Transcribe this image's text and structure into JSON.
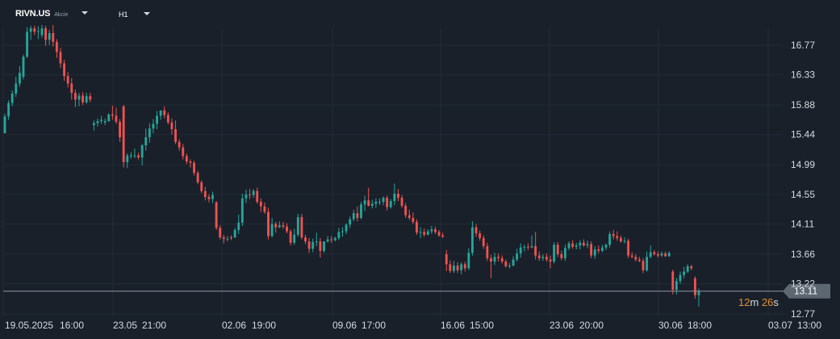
{
  "header": {
    "symbol": "RIVN.US",
    "instrument_type": "Akcie",
    "timeframe": "H1"
  },
  "countdown": {
    "minutes": "12",
    "minutes_unit": "m",
    "seconds": "26",
    "seconds_unit": "s"
  },
  "colors": {
    "background": "#19202a",
    "grid": "#222b36",
    "up": "#26a69a",
    "down": "#ef5350",
    "axis_text": "#d5dae0",
    "price_tag": "#5d6772",
    "timer": "#e8912d"
  },
  "chart_data": {
    "type": "candlestick",
    "title": "",
    "xlabel": "",
    "ylabel": "",
    "ylim": [
      12.67,
      17.08
    ],
    "y_ticks": [
      "16.77",
      "16.33",
      "15.88",
      "15.44",
      "14.99",
      "14.55",
      "14.11",
      "13.66",
      "13.22",
      "12.77"
    ],
    "x_tick_labels": [
      "19.05.2025",
      "16:00",
      "23.05",
      "21:00",
      "02.06",
      "19:00",
      "09.06",
      "17:00",
      "16.06",
      "15:00",
      "23.06",
      "20:00",
      "30.06",
      "18:00",
      "03.07",
      "13:00"
    ],
    "current_price": "13.11",
    "grid": true,
    "candles": [
      {
        "o": 15.46,
        "h": 15.75,
        "l": 15.46,
        "c": 15.71
      },
      {
        "o": 15.71,
        "h": 15.95,
        "l": 15.66,
        "c": 15.91
      },
      {
        "o": 15.91,
        "h": 16.1,
        "l": 15.86,
        "c": 16.05
      },
      {
        "o": 16.05,
        "h": 16.3,
        "l": 16.0,
        "c": 16.2
      },
      {
        "o": 16.2,
        "h": 16.46,
        "l": 16.15,
        "c": 16.36
      },
      {
        "o": 16.3,
        "h": 16.63,
        "l": 16.26,
        "c": 16.6
      },
      {
        "o": 16.6,
        "h": 17.04,
        "l": 16.58,
        "c": 16.97
      },
      {
        "o": 16.97,
        "h": 17.06,
        "l": 16.85,
        "c": 17.02
      },
      {
        "o": 17.02,
        "h": 17.06,
        "l": 16.92,
        "c": 16.97
      },
      {
        "o": 16.97,
        "h": 17.05,
        "l": 16.86,
        "c": 16.98
      },
      {
        "o": 16.92,
        "h": 17.07,
        "l": 16.88,
        "c": 17.02
      },
      {
        "o": 17.02,
        "h": 17.06,
        "l": 16.76,
        "c": 16.85
      },
      {
        "o": 16.85,
        "h": 17.0,
        "l": 16.77,
        "c": 16.95
      },
      {
        "o": 16.95,
        "h": 17.07,
        "l": 16.75,
        "c": 16.82
      },
      {
        "o": 16.82,
        "h": 16.86,
        "l": 16.58,
        "c": 16.67
      },
      {
        "o": 16.67,
        "h": 16.73,
        "l": 16.43,
        "c": 16.5
      },
      {
        "o": 16.5,
        "h": 16.55,
        "l": 16.24,
        "c": 16.31
      },
      {
        "o": 16.31,
        "h": 16.37,
        "l": 16.14,
        "c": 16.2
      },
      {
        "o": 16.2,
        "h": 16.28,
        "l": 15.96,
        "c": 16.06
      },
      {
        "o": 16.06,
        "h": 16.11,
        "l": 15.85,
        "c": 15.96
      },
      {
        "o": 15.96,
        "h": 16.06,
        "l": 15.86,
        "c": 16.02
      },
      {
        "o": 16.02,
        "h": 16.07,
        "l": 15.88,
        "c": 15.92
      },
      {
        "o": 15.92,
        "h": 16.06,
        "l": 15.9,
        "c": 16.01
      },
      {
        "o": 16.01,
        "h": 16.06,
        "l": 15.92,
        "c": 15.96
      },
      {
        "o": 15.58,
        "h": 15.65,
        "l": 15.5,
        "c": 15.61
      },
      {
        "o": 15.61,
        "h": 15.68,
        "l": 15.56,
        "c": 15.64
      },
      {
        "o": 15.64,
        "h": 15.72,
        "l": 15.6,
        "c": 15.66
      },
      {
        "o": 15.62,
        "h": 15.68,
        "l": 15.58,
        "c": 15.64
      },
      {
        "o": 15.64,
        "h": 15.76,
        "l": 15.63,
        "c": 15.74
      },
      {
        "o": 15.74,
        "h": 15.87,
        "l": 15.66,
        "c": 15.72
      },
      {
        "o": 15.72,
        "h": 15.84,
        "l": 15.6,
        "c": 15.63
      },
      {
        "o": 15.63,
        "h": 15.67,
        "l": 15.33,
        "c": 15.4
      },
      {
        "o": 15.86,
        "h": 15.88,
        "l": 14.95,
        "c": 15.03
      },
      {
        "o": 15.03,
        "h": 15.16,
        "l": 14.94,
        "c": 15.13
      },
      {
        "o": 15.13,
        "h": 15.18,
        "l": 15.08,
        "c": 15.13
      },
      {
        "o": 15.13,
        "h": 15.23,
        "l": 15.09,
        "c": 15.13
      },
      {
        "o": 15.13,
        "h": 15.17,
        "l": 15.07,
        "c": 15.1
      },
      {
        "o": 15.1,
        "h": 15.3,
        "l": 14.98,
        "c": 15.28
      },
      {
        "o": 15.28,
        "h": 15.53,
        "l": 15.2,
        "c": 15.4
      },
      {
        "o": 15.4,
        "h": 15.61,
        "l": 15.32,
        "c": 15.53
      },
      {
        "o": 15.53,
        "h": 15.67,
        "l": 15.46,
        "c": 15.6
      },
      {
        "o": 15.6,
        "h": 15.79,
        "l": 15.52,
        "c": 15.72
      },
      {
        "o": 15.72,
        "h": 15.8,
        "l": 15.66,
        "c": 15.8
      },
      {
        "o": 15.8,
        "h": 15.86,
        "l": 15.68,
        "c": 15.73
      },
      {
        "o": 15.73,
        "h": 15.77,
        "l": 15.59,
        "c": 15.62
      },
      {
        "o": 15.62,
        "h": 15.68,
        "l": 15.44,
        "c": 15.52
      },
      {
        "o": 15.52,
        "h": 15.65,
        "l": 15.3,
        "c": 15.33
      },
      {
        "o": 15.33,
        "h": 15.37,
        "l": 15.2,
        "c": 15.25
      },
      {
        "o": 15.25,
        "h": 15.3,
        "l": 15.07,
        "c": 15.12
      },
      {
        "o": 15.12,
        "h": 15.16,
        "l": 15.0,
        "c": 15.04
      },
      {
        "o": 15.04,
        "h": 15.07,
        "l": 14.95,
        "c": 15.02
      },
      {
        "o": 15.02,
        "h": 15.05,
        "l": 14.83,
        "c": 14.87
      },
      {
        "o": 14.87,
        "h": 14.9,
        "l": 14.7,
        "c": 14.73
      },
      {
        "o": 14.73,
        "h": 14.76,
        "l": 14.57,
        "c": 14.6
      },
      {
        "o": 14.6,
        "h": 14.66,
        "l": 14.46,
        "c": 14.51
      },
      {
        "o": 14.51,
        "h": 14.55,
        "l": 14.43,
        "c": 14.48
      },
      {
        "o": 14.48,
        "h": 14.59,
        "l": 14.42,
        "c": 14.54
      },
      {
        "o": 14.43,
        "h": 14.45,
        "l": 14.02,
        "c": 14.05
      },
      {
        "o": 14.05,
        "h": 14.09,
        "l": 13.88,
        "c": 13.91
      },
      {
        "o": 13.91,
        "h": 13.95,
        "l": 13.82,
        "c": 13.89
      },
      {
        "o": 13.89,
        "h": 13.93,
        "l": 13.85,
        "c": 13.89
      },
      {
        "o": 13.91,
        "h": 13.94,
        "l": 13.87,
        "c": 13.9
      },
      {
        "o": 13.91,
        "h": 14.05,
        "l": 13.9,
        "c": 14.02
      },
      {
        "o": 14.02,
        "h": 14.25,
        "l": 13.96,
        "c": 14.13
      },
      {
        "o": 14.13,
        "h": 14.56,
        "l": 14.08,
        "c": 14.49
      },
      {
        "o": 14.49,
        "h": 14.62,
        "l": 14.42,
        "c": 14.55
      },
      {
        "o": 14.55,
        "h": 14.63,
        "l": 14.48,
        "c": 14.54
      },
      {
        "o": 14.54,
        "h": 14.63,
        "l": 14.5,
        "c": 14.6
      },
      {
        "o": 14.6,
        "h": 14.65,
        "l": 14.41,
        "c": 14.44
      },
      {
        "o": 14.44,
        "h": 14.49,
        "l": 14.29,
        "c": 14.37
      },
      {
        "o": 14.37,
        "h": 14.43,
        "l": 14.26,
        "c": 14.29
      },
      {
        "o": 14.29,
        "h": 14.35,
        "l": 13.88,
        "c": 13.93
      },
      {
        "o": 13.93,
        "h": 14.2,
        "l": 13.91,
        "c": 14.11
      },
      {
        "o": 14.11,
        "h": 14.14,
        "l": 13.98,
        "c": 14.06
      },
      {
        "o": 14.06,
        "h": 14.15,
        "l": 14.05,
        "c": 14.09
      },
      {
        "o": 14.09,
        "h": 14.14,
        "l": 14.04,
        "c": 14.07
      },
      {
        "o": 14.07,
        "h": 14.12,
        "l": 13.97,
        "c": 14.0
      },
      {
        "o": 14.0,
        "h": 14.03,
        "l": 13.79,
        "c": 13.83
      },
      {
        "o": 13.83,
        "h": 14.04,
        "l": 13.8,
        "c": 13.95
      },
      {
        "o": 13.95,
        "h": 14.26,
        "l": 13.92,
        "c": 14.21
      },
      {
        "o": 14.21,
        "h": 14.26,
        "l": 13.88,
        "c": 13.91
      },
      {
        "o": 13.91,
        "h": 13.95,
        "l": 13.81,
        "c": 13.85
      },
      {
        "o": 13.85,
        "h": 13.9,
        "l": 13.68,
        "c": 13.74
      },
      {
        "o": 13.74,
        "h": 13.89,
        "l": 13.69,
        "c": 13.84
      },
      {
        "o": 13.84,
        "h": 13.98,
        "l": 13.78,
        "c": 13.85
      },
      {
        "o": 13.85,
        "h": 13.9,
        "l": 13.61,
        "c": 13.71
      },
      {
        "o": 13.71,
        "h": 13.85,
        "l": 13.68,
        "c": 13.85
      },
      {
        "o": 13.85,
        "h": 13.93,
        "l": 13.83,
        "c": 13.88
      },
      {
        "o": 13.88,
        "h": 13.93,
        "l": 13.83,
        "c": 13.87
      },
      {
        "o": 13.87,
        "h": 13.92,
        "l": 13.85,
        "c": 13.9
      },
      {
        "o": 13.9,
        "h": 14.05,
        "l": 13.87,
        "c": 13.99
      },
      {
        "o": 13.99,
        "h": 14.06,
        "l": 13.92,
        "c": 14.0
      },
      {
        "o": 14.0,
        "h": 14.12,
        "l": 13.96,
        "c": 14.1
      },
      {
        "o": 14.1,
        "h": 14.22,
        "l": 14.05,
        "c": 14.18
      },
      {
        "o": 14.18,
        "h": 14.32,
        "l": 14.15,
        "c": 14.27
      },
      {
        "o": 14.27,
        "h": 14.37,
        "l": 14.15,
        "c": 14.2
      },
      {
        "o": 14.2,
        "h": 14.44,
        "l": 14.18,
        "c": 14.4
      },
      {
        "o": 14.4,
        "h": 14.53,
        "l": 14.3,
        "c": 14.46
      },
      {
        "o": 14.46,
        "h": 14.65,
        "l": 14.37,
        "c": 14.38
      },
      {
        "o": 14.38,
        "h": 14.47,
        "l": 14.34,
        "c": 14.41
      },
      {
        "o": 14.41,
        "h": 14.49,
        "l": 14.35,
        "c": 14.44
      },
      {
        "o": 14.44,
        "h": 14.49,
        "l": 14.39,
        "c": 14.44
      },
      {
        "o": 14.44,
        "h": 14.52,
        "l": 14.39,
        "c": 14.5
      },
      {
        "o": 14.5,
        "h": 14.53,
        "l": 14.31,
        "c": 14.36
      },
      {
        "o": 14.36,
        "h": 14.48,
        "l": 14.34,
        "c": 14.45
      },
      {
        "o": 14.45,
        "h": 14.71,
        "l": 14.39,
        "c": 14.56
      },
      {
        "o": 14.56,
        "h": 14.63,
        "l": 14.45,
        "c": 14.5
      },
      {
        "o": 14.5,
        "h": 14.54,
        "l": 14.35,
        "c": 14.38
      },
      {
        "o": 14.38,
        "h": 14.42,
        "l": 14.2,
        "c": 14.24
      },
      {
        "o": 14.24,
        "h": 14.32,
        "l": 14.17,
        "c": 14.2
      },
      {
        "o": 14.2,
        "h": 14.28,
        "l": 14.11,
        "c": 14.14
      },
      {
        "o": 14.14,
        "h": 14.18,
        "l": 13.95,
        "c": 13.98
      },
      {
        "o": 13.98,
        "h": 14.06,
        "l": 13.9,
        "c": 13.99
      },
      {
        "o": 13.99,
        "h": 14.04,
        "l": 13.92,
        "c": 13.95
      },
      {
        "o": 13.95,
        "h": 14.03,
        "l": 13.94,
        "c": 14.0
      },
      {
        "o": 14.0,
        "h": 14.08,
        "l": 13.96,
        "c": 14.03
      },
      {
        "o": 14.03,
        "h": 14.07,
        "l": 13.96,
        "c": 13.99
      },
      {
        "o": 13.99,
        "h": 14.02,
        "l": 13.92,
        "c": 13.94
      },
      {
        "o": 13.94,
        "h": 13.98,
        "l": 13.9,
        "c": 13.92
      },
      {
        "o": 13.66,
        "h": 13.72,
        "l": 13.41,
        "c": 13.51
      },
      {
        "o": 13.51,
        "h": 13.57,
        "l": 13.38,
        "c": 13.41
      },
      {
        "o": 13.41,
        "h": 13.56,
        "l": 13.38,
        "c": 13.49
      },
      {
        "o": 13.49,
        "h": 13.54,
        "l": 13.38,
        "c": 13.42
      },
      {
        "o": 13.42,
        "h": 13.54,
        "l": 13.36,
        "c": 13.51
      },
      {
        "o": 13.51,
        "h": 13.55,
        "l": 13.4,
        "c": 13.45
      },
      {
        "o": 13.45,
        "h": 13.75,
        "l": 13.42,
        "c": 13.68
      },
      {
        "o": 13.68,
        "h": 14.15,
        "l": 13.64,
        "c": 14.06
      },
      {
        "o": 14.06,
        "h": 14.11,
        "l": 13.92,
        "c": 13.97
      },
      {
        "o": 13.97,
        "h": 14.01,
        "l": 13.86,
        "c": 13.9
      },
      {
        "o": 13.9,
        "h": 13.94,
        "l": 13.74,
        "c": 13.78
      },
      {
        "o": 13.78,
        "h": 13.83,
        "l": 13.56,
        "c": 13.6
      },
      {
        "o": 13.6,
        "h": 13.65,
        "l": 13.3,
        "c": 13.55
      },
      {
        "o": 13.55,
        "h": 13.68,
        "l": 13.5,
        "c": 13.62
      },
      {
        "o": 13.62,
        "h": 13.67,
        "l": 13.55,
        "c": 13.6
      },
      {
        "o": 13.6,
        "h": 13.64,
        "l": 13.52,
        "c": 13.55
      },
      {
        "o": 13.55,
        "h": 13.58,
        "l": 13.46,
        "c": 13.48
      },
      {
        "o": 13.48,
        "h": 13.53,
        "l": 13.45,
        "c": 13.49
      },
      {
        "o": 13.49,
        "h": 13.63,
        "l": 13.48,
        "c": 13.58
      },
      {
        "o": 13.58,
        "h": 13.74,
        "l": 13.55,
        "c": 13.67
      },
      {
        "o": 13.67,
        "h": 13.82,
        "l": 13.61,
        "c": 13.76
      },
      {
        "o": 13.76,
        "h": 13.8,
        "l": 13.7,
        "c": 13.77
      },
      {
        "o": 13.77,
        "h": 13.82,
        "l": 13.72,
        "c": 13.76
      },
      {
        "o": 13.76,
        "h": 13.94,
        "l": 13.75,
        "c": 13.78
      },
      {
        "o": 13.78,
        "h": 13.99,
        "l": 13.58,
        "c": 13.64
      },
      {
        "o": 13.64,
        "h": 13.7,
        "l": 13.56,
        "c": 13.6
      },
      {
        "o": 13.6,
        "h": 13.66,
        "l": 13.56,
        "c": 13.62
      },
      {
        "o": 13.62,
        "h": 13.67,
        "l": 13.55,
        "c": 13.58
      },
      {
        "o": 13.58,
        "h": 13.64,
        "l": 13.45,
        "c": 13.55
      },
      {
        "o": 13.55,
        "h": 13.84,
        "l": 13.52,
        "c": 13.8
      },
      {
        "o": 13.8,
        "h": 13.84,
        "l": 13.62,
        "c": 13.66
      },
      {
        "o": 13.66,
        "h": 13.71,
        "l": 13.57,
        "c": 13.6
      },
      {
        "o": 13.6,
        "h": 13.8,
        "l": 13.56,
        "c": 13.75
      },
      {
        "o": 13.75,
        "h": 13.85,
        "l": 13.72,
        "c": 13.82
      },
      {
        "o": 13.82,
        "h": 13.87,
        "l": 13.74,
        "c": 13.77
      },
      {
        "o": 13.77,
        "h": 13.83,
        "l": 13.73,
        "c": 13.79
      },
      {
        "o": 13.79,
        "h": 13.87,
        "l": 13.73,
        "c": 13.83
      },
      {
        "o": 13.83,
        "h": 13.88,
        "l": 13.77,
        "c": 13.79
      },
      {
        "o": 13.79,
        "h": 13.86,
        "l": 13.75,
        "c": 13.81
      },
      {
        "o": 13.81,
        "h": 13.85,
        "l": 13.6,
        "c": 13.64
      },
      {
        "o": 13.64,
        "h": 13.78,
        "l": 13.59,
        "c": 13.73
      },
      {
        "o": 13.73,
        "h": 13.79,
        "l": 13.67,
        "c": 13.71
      },
      {
        "o": 13.71,
        "h": 13.8,
        "l": 13.69,
        "c": 13.76
      },
      {
        "o": 13.76,
        "h": 13.82,
        "l": 13.72,
        "c": 13.8
      },
      {
        "o": 13.8,
        "h": 14.0,
        "l": 13.76,
        "c": 13.96
      },
      {
        "o": 13.96,
        "h": 14.02,
        "l": 13.88,
        "c": 13.93
      },
      {
        "o": 13.93,
        "h": 14.0,
        "l": 13.86,
        "c": 13.9
      },
      {
        "o": 13.9,
        "h": 13.94,
        "l": 13.83,
        "c": 13.85
      },
      {
        "o": 13.85,
        "h": 13.91,
        "l": 13.82,
        "c": 13.86
      },
      {
        "o": 13.86,
        "h": 13.89,
        "l": 13.6,
        "c": 13.64
      },
      {
        "o": 13.64,
        "h": 13.69,
        "l": 13.6,
        "c": 13.62
      },
      {
        "o": 13.62,
        "h": 13.66,
        "l": 13.55,
        "c": 13.58
      },
      {
        "o": 13.58,
        "h": 13.62,
        "l": 13.54,
        "c": 13.56
      },
      {
        "o": 13.56,
        "h": 13.6,
        "l": 13.38,
        "c": 13.42
      },
      {
        "o": 13.42,
        "h": 13.7,
        "l": 13.4,
        "c": 13.62
      },
      {
        "o": 13.62,
        "h": 13.79,
        "l": 13.6,
        "c": 13.69
      },
      {
        "o": 13.69,
        "h": 13.72,
        "l": 13.64,
        "c": 13.66
      },
      {
        "o": 13.66,
        "h": 13.7,
        "l": 13.61,
        "c": 13.64
      },
      {
        "o": 13.64,
        "h": 13.7,
        "l": 13.62,
        "c": 13.67
      },
      {
        "o": 13.67,
        "h": 13.7,
        "l": 13.62,
        "c": 13.63
      },
      {
        "o": 13.63,
        "h": 13.7,
        "l": 13.62,
        "c": 13.68
      },
      {
        "o": 13.4,
        "h": 13.43,
        "l": 13.06,
        "c": 13.13
      },
      {
        "o": 13.13,
        "h": 13.31,
        "l": 13.06,
        "c": 13.26
      },
      {
        "o": 13.26,
        "h": 13.4,
        "l": 13.22,
        "c": 13.35
      },
      {
        "o": 13.35,
        "h": 13.47,
        "l": 13.3,
        "c": 13.4
      },
      {
        "o": 13.4,
        "h": 13.51,
        "l": 13.38,
        "c": 13.48
      },
      {
        "o": 13.48,
        "h": 13.5,
        "l": 13.42,
        "c": 13.45
      },
      {
        "o": 13.3,
        "h": 13.33,
        "l": 13.0,
        "c": 13.05
      },
      {
        "o": 13.05,
        "h": 13.15,
        "l": 12.88,
        "c": 13.11
      }
    ]
  }
}
